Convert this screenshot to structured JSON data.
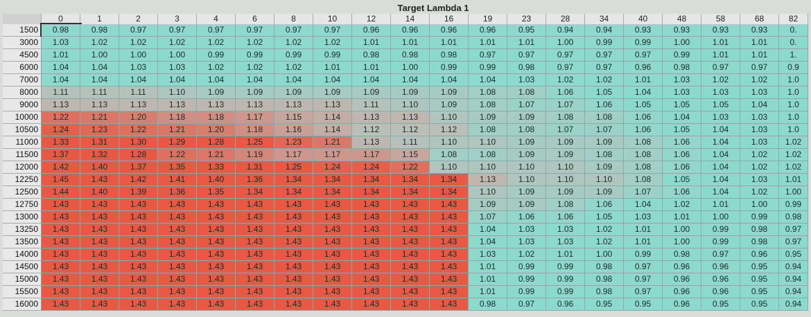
{
  "title": "Target Lambda 1",
  "table": {
    "columns": [
      "0",
      "1",
      "2",
      "3",
      "4",
      "6",
      "8",
      "10",
      "12",
      "14",
      "16",
      "19",
      "23",
      "28",
      "34",
      "40",
      "48",
      "58",
      "68",
      "82"
    ],
    "rows": [
      {
        "label": "1500",
        "cells": [
          "0.98",
          "0.98",
          "0.97",
          "0.97",
          "0.97",
          "0.97",
          "0.97",
          "0.97",
          "0.96",
          "0.96",
          "0.96",
          "0.96",
          "0.95",
          "0.94",
          "0.94",
          "0.93",
          "0.93",
          "0.93",
          "0.93",
          "0."
        ]
      },
      {
        "label": "3000",
        "cells": [
          "1.03",
          "1.02",
          "1.02",
          "1.02",
          "1.02",
          "1.02",
          "1.02",
          "1.02",
          "1.01",
          "1.01",
          "1.01",
          "1.01",
          "1.01",
          "1.00",
          "0.99",
          "0.99",
          "1.00",
          "1.01",
          "1.01",
          "0."
        ]
      },
      {
        "label": "4500",
        "cells": [
          "1.01",
          "1.00",
          "1.00",
          "1.00",
          "0.99",
          "0.99",
          "0.99",
          "0.99",
          "0.98",
          "0.98",
          "0.98",
          "0.97",
          "0.97",
          "0.97",
          "0.97",
          "0.97",
          "0.99",
          "1.01",
          "1.01",
          "1."
        ]
      },
      {
        "label": "6000",
        "cells": [
          "1.04",
          "1.04",
          "1.03",
          "1.03",
          "1.02",
          "1.02",
          "1.02",
          "1.01",
          "1.01",
          "1.00",
          "0.99",
          "0.99",
          "0.98",
          "0.97",
          "0.97",
          "0.96",
          "0.98",
          "0.97",
          "0.97",
          "0.9"
        ]
      },
      {
        "label": "7000",
        "cells": [
          "1.04",
          "1.04",
          "1.04",
          "1.04",
          "1.04",
          "1.04",
          "1.04",
          "1.04",
          "1.04",
          "1.04",
          "1.04",
          "1.04",
          "1.03",
          "1.02",
          "1.02",
          "1.01",
          "1.03",
          "1.02",
          "1.02",
          "1.0"
        ]
      },
      {
        "label": "8000",
        "cells": [
          "1.11",
          "1.11",
          "1.11",
          "1.10",
          "1.09",
          "1.09",
          "1.09",
          "1.09",
          "1.09",
          "1.09",
          "1.09",
          "1.08",
          "1.08",
          "1.06",
          "1.05",
          "1.04",
          "1.03",
          "1.03",
          "1.03",
          "1.0"
        ]
      },
      {
        "label": "9000",
        "cells": [
          "1.13",
          "1.13",
          "1.13",
          "1.13",
          "1.13",
          "1.13",
          "1.13",
          "1.13",
          "1.11",
          "1.10",
          "1.09",
          "1.08",
          "1.07",
          "1.07",
          "1.06",
          "1.05",
          "1.05",
          "1.05",
          "1.04",
          "1.0"
        ]
      },
      {
        "label": "10000",
        "cells": [
          "1.22",
          "1.21",
          "1.20",
          "1.18",
          "1.18",
          "1.17",
          "1.15",
          "1.14",
          "1.13",
          "1.13",
          "1.10",
          "1.09",
          "1.09",
          "1.08",
          "1.08",
          "1.06",
          "1.04",
          "1.03",
          "1.03",
          "1.0"
        ]
      },
      {
        "label": "10500",
        "cells": [
          "1.24",
          "1.23",
          "1.22",
          "1.21",
          "1.20",
          "1.18",
          "1.16",
          "1.14",
          "1.12",
          "1.12",
          "1.12",
          "1.08",
          "1.08",
          "1.07",
          "1.07",
          "1.06",
          "1.05",
          "1.04",
          "1.03",
          "1.0"
        ]
      },
      {
        "label": "11000",
        "cells": [
          "1.33",
          "1.31",
          "1.30",
          "1.29",
          "1.28",
          "1.25",
          "1.23",
          "1.21",
          "1.13",
          "1.11",
          "1.10",
          "1.10",
          "1.09",
          "1.09",
          "1.09",
          "1.08",
          "1.06",
          "1.04",
          "1.03",
          "1.02"
        ]
      },
      {
        "label": "11500",
        "cells": [
          "1.37",
          "1.32",
          "1.28",
          "1.22",
          "1.21",
          "1.19",
          "1.17",
          "1.17",
          "1.17",
          "1.15",
          "1.08",
          "1.08",
          "1.09",
          "1.09",
          "1.08",
          "1.08",
          "1.06",
          "1.04",
          "1.02",
          "1.02"
        ]
      },
      {
        "label": "12000",
        "cells": [
          "1.42",
          "1.40",
          "1.37",
          "1.35",
          "1.33",
          "1.31",
          "1.25",
          "1.24",
          "1.24",
          "1.22",
          "1.10",
          "1.10",
          "1.10",
          "1.10",
          "1.09",
          "1.08",
          "1.06",
          "1.04",
          "1.02",
          "1.02"
        ]
      },
      {
        "label": "12250",
        "cells": [
          "1.45",
          "1.43",
          "1.42",
          "1.41",
          "1.40",
          "1.36",
          "1.34",
          "1.34",
          "1.34",
          "1.34",
          "1.34",
          "1.13",
          "1.10",
          "1.10",
          "1.10",
          "1.08",
          "1.05",
          "1.04",
          "1.03",
          "1.01"
        ]
      },
      {
        "label": "12500",
        "cells": [
          "1.44",
          "1.40",
          "1.39",
          "1.36",
          "1.35",
          "1.34",
          "1.34",
          "1.34",
          "1.34",
          "1.34",
          "1.34",
          "1.10",
          "1.09",
          "1.09",
          "1.09",
          "1.07",
          "1.06",
          "1.04",
          "1.02",
          "1.00"
        ]
      },
      {
        "label": "12750",
        "cells": [
          "1.43",
          "1.43",
          "1.43",
          "1.43",
          "1.43",
          "1.43",
          "1.43",
          "1.43",
          "1.43",
          "1.43",
          "1.43",
          "1.09",
          "1.09",
          "1.08",
          "1.06",
          "1.04",
          "1.02",
          "1.01",
          "1.00",
          "0.99"
        ]
      },
      {
        "label": "13000",
        "cells": [
          "1.43",
          "1.43",
          "1.43",
          "1.43",
          "1.43",
          "1.43",
          "1.43",
          "1.43",
          "1.43",
          "1.43",
          "1.43",
          "1.07",
          "1.06",
          "1.06",
          "1.05",
          "1.03",
          "1.01",
          "1.00",
          "0.99",
          "0.98"
        ]
      },
      {
        "label": "13250",
        "cells": [
          "1.43",
          "1.43",
          "1.43",
          "1.43",
          "1.43",
          "1.43",
          "1.43",
          "1.43",
          "1.43",
          "1.43",
          "1.43",
          "1.04",
          "1.03",
          "1.03",
          "1.02",
          "1.01",
          "1.00",
          "0.99",
          "0.98",
          "0.97"
        ]
      },
      {
        "label": "13500",
        "cells": [
          "1.43",
          "1.43",
          "1.43",
          "1.43",
          "1.43",
          "1.43",
          "1.43",
          "1.43",
          "1.43",
          "1.43",
          "1.43",
          "1.04",
          "1.03",
          "1.03",
          "1.02",
          "1.01",
          "1.00",
          "0.99",
          "0.98",
          "0.97"
        ]
      },
      {
        "label": "14000",
        "cells": [
          "1.43",
          "1.43",
          "1.43",
          "1.43",
          "1.43",
          "1.43",
          "1.43",
          "1.43",
          "1.43",
          "1.43",
          "1.43",
          "1.03",
          "1.02",
          "1.01",
          "1.00",
          "0.99",
          "0.98",
          "0.97",
          "0.96",
          "0.95"
        ]
      },
      {
        "label": "14500",
        "cells": [
          "1.43",
          "1.43",
          "1.43",
          "1.43",
          "1.43",
          "1.43",
          "1.43",
          "1.43",
          "1.43",
          "1.43",
          "1.43",
          "1.01",
          "0.99",
          "0.99",
          "0.98",
          "0.97",
          "0.96",
          "0.96",
          "0.95",
          "0.94"
        ]
      },
      {
        "label": "15000",
        "cells": [
          "1.43",
          "1.43",
          "1.43",
          "1.43",
          "1.43",
          "1.43",
          "1.43",
          "1.43",
          "1.43",
          "1.43",
          "1.43",
          "1.01",
          "0.99",
          "0.99",
          "0.98",
          "0.97",
          "0.96",
          "0.96",
          "0.95",
          "0.94"
        ]
      },
      {
        "label": "15500",
        "cells": [
          "1.43",
          "1.43",
          "1.43",
          "1.43",
          "1.43",
          "1.43",
          "1.43",
          "1.43",
          "1.43",
          "1.43",
          "1.43",
          "1.01",
          "0.99",
          "0.99",
          "0.98",
          "0.97",
          "0.96",
          "0.96",
          "0.95",
          "0.94"
        ]
      },
      {
        "label": "16000",
        "cells": [
          "1.43",
          "1.43",
          "1.43",
          "1.43",
          "1.43",
          "1.43",
          "1.43",
          "1.43",
          "1.43",
          "1.43",
          "1.43",
          "0.98",
          "0.97",
          "0.96",
          "0.95",
          "0.95",
          "0.96",
          "0.95",
          "0.95",
          "0.94"
        ]
      }
    ]
  }
}
